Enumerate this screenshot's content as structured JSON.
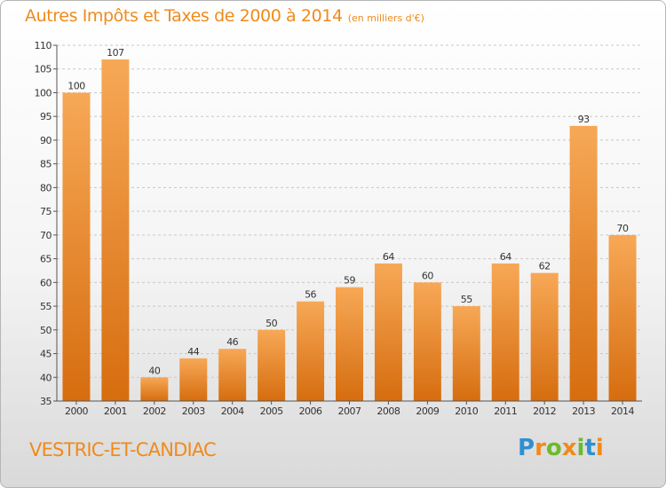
{
  "header": {
    "title": "Autres Impôts et Taxes de 2000 à 2014",
    "unit": "(en milliers d'€)"
  },
  "footer": {
    "commune": "VESTRIC-ET-CANDIAC",
    "logo_text": "Proxiti"
  },
  "colors": {
    "accent": "#f08a1c",
    "bar_top": "#f7a856",
    "bar_bottom": "#d66d0f",
    "logo_letters": [
      "#2f8fd2",
      "#f08a1c",
      "#6bbb2c",
      "#f08a1c",
      "#6bbb2c",
      "#2f8fd2",
      "#f08a1c"
    ]
  },
  "chart_data": {
    "type": "bar",
    "title": "Autres Impôts et Taxes de 2000 à 2014",
    "xlabel": "",
    "ylabel": "",
    "categories": [
      "2000",
      "2001",
      "2002",
      "2003",
      "2004",
      "2005",
      "2006",
      "2007",
      "2008",
      "2009",
      "2010",
      "2011",
      "2012",
      "2013",
      "2014"
    ],
    "values": [
      100,
      107,
      40,
      44,
      46,
      50,
      56,
      59,
      64,
      60,
      55,
      64,
      62,
      93,
      70
    ],
    "ylim": [
      35,
      110
    ],
    "yticks": [
      35,
      40,
      45,
      50,
      55,
      60,
      65,
      70,
      75,
      80,
      85,
      90,
      95,
      100,
      105,
      110
    ],
    "grid": "horizontal dashed",
    "legend": "none"
  }
}
